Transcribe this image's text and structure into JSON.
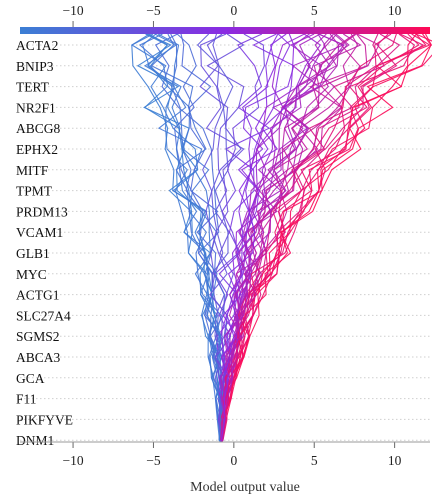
{
  "chart_data": {
    "type": "line",
    "title": "",
    "xlabel": "Model output value",
    "ylabel": "",
    "xlim": [
      -13.3,
      12.2
    ],
    "xticks": [
      -10,
      -5,
      0,
      5,
      10
    ],
    "tick_labels": [
      "−10",
      "−5",
      "0",
      "5",
      "10"
    ],
    "features": [
      "ACTA2",
      "BNIP3",
      "TERT",
      "NR2F1",
      "ABCG8",
      "EPHX2",
      "MITF",
      "TPMT",
      "PRDM13",
      "VCAM1",
      "GLB1",
      "MYC",
      "ACTG1",
      "SLC27A4",
      "SGMS2",
      "ABCA3",
      "GCA",
      "F11",
      "PIKFYVE",
      "DNM1"
    ],
    "base_value": -0.8,
    "final_output_range": [
      -5.5,
      12
    ],
    "n_samples": 60,
    "grid": "horizontal dotted",
    "colors": {
      "low": "#3b7fd4",
      "mid": "#8a2be2",
      "high": "#ff0a55"
    }
  }
}
